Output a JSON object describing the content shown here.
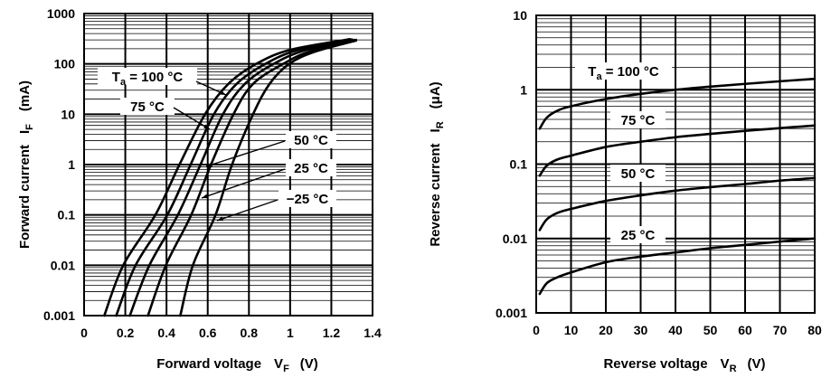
{
  "chart_data": [
    {
      "type": "line",
      "xlabel": {
        "main": "Forward voltage",
        "sym": "V",
        "sub": "F",
        "unit": "(V)"
      },
      "ylabel": {
        "main": "Forward current",
        "sym": "I",
        "sub": "F",
        "unit": "(mA)"
      },
      "xlim": [
        0,
        1.4
      ],
      "ylim": [
        0.001,
        1000
      ],
      "yscale": "log",
      "grid": true,
      "xticks": [
        "0",
        "0.2",
        "0.4",
        "0.6",
        "0.8",
        "1",
        "1.2",
        "1.4"
      ],
      "yticks": [
        "0.001",
        "0.01",
        "0.1",
        "1",
        "10",
        "100",
        "1000"
      ],
      "series": [
        {
          "name": "Ta = 100 °C",
          "label": {
            "sym": "T",
            "sub": "a",
            "rest": " = 100 °C"
          },
          "points": [
            [
              0.098,
              0.001
            ],
            [
              0.19,
              0.01
            ],
            [
              0.346,
              0.1
            ],
            [
              0.463,
              1
            ],
            [
              0.587,
              10
            ],
            [
              0.7,
              40
            ],
            [
              0.835,
              100
            ],
            [
              1.0,
              190
            ],
            [
              1.29,
              310
            ]
          ]
        },
        {
          "name": "75 °C",
          "label": {
            "sym": "",
            "sub": "",
            "rest": "75 °C"
          },
          "points": [
            [
              0.156,
              0.001
            ],
            [
              0.25,
              0.01
            ],
            [
              0.404,
              0.1
            ],
            [
              0.517,
              1
            ],
            [
              0.63,
              10
            ],
            [
              0.74,
              40
            ],
            [
              0.88,
              100
            ],
            [
              1.04,
              190
            ],
            [
              1.3,
              305
            ]
          ]
        },
        {
          "name": "50 °C",
          "label": {
            "sym": "",
            "sub": "",
            "rest": "50 °C"
          },
          "points": [
            [
              0.222,
              0.001
            ],
            [
              0.317,
              0.01
            ],
            [
              0.455,
              0.1
            ],
            [
              0.565,
              1
            ],
            [
              0.674,
              10
            ],
            [
              0.78,
              40
            ],
            [
              0.92,
              100
            ],
            [
              1.07,
              185
            ],
            [
              1.31,
              300
            ]
          ]
        },
        {
          "name": "25 °C",
          "label": {
            "sym": "",
            "sub": "",
            "rest": "25 °C"
          },
          "points": [
            [
              0.31,
              0.001
            ],
            [
              0.397,
              0.01
            ],
            [
              0.52,
              0.1
            ],
            [
              0.616,
              1
            ],
            [
              0.725,
              10
            ],
            [
              0.82,
              40
            ],
            [
              0.966,
              100
            ],
            [
              1.1,
              180
            ],
            [
              1.32,
              300
            ]
          ]
        },
        {
          "name": "−25 °C",
          "label": {
            "sym": "",
            "sub": "",
            "rest": "−25 °C"
          },
          "points": [
            [
              0.467,
              0.001
            ],
            [
              0.528,
              0.01
            ],
            [
              0.638,
              0.1
            ],
            [
              0.718,
              1
            ],
            [
              0.82,
              10
            ],
            [
              0.9,
              40
            ],
            [
              0.995,
              100
            ],
            [
              1.12,
              175
            ],
            [
              1.32,
              290
            ]
          ]
        }
      ]
    },
    {
      "type": "line",
      "xlabel": {
        "main": "Reverse voltage",
        "sym": "V",
        "sub": "R",
        "unit": "(V)"
      },
      "ylabel": {
        "main": "Reverse current",
        "sym": "I",
        "sub": "R",
        "unit": "(μA)"
      },
      "xlim": [
        0,
        80
      ],
      "ylim": [
        0.001,
        10
      ],
      "yscale": "log",
      "grid": true,
      "xticks": [
        "0",
        "10",
        "20",
        "30",
        "40",
        "50",
        "60",
        "70",
        "80"
      ],
      "yticks": [
        "0.001",
        "0.01",
        "0.1",
        "1",
        "10"
      ],
      "series": [
        {
          "name": "Ta = 100 °C",
          "label": {
            "sym": "T",
            "sub": "a",
            "rest": " = 100 °C"
          },
          "points": [
            [
              1,
              0.3
            ],
            [
              3,
              0.42
            ],
            [
              6,
              0.52
            ],
            [
              10,
              0.6
            ],
            [
              20,
              0.75
            ],
            [
              30,
              0.88
            ],
            [
              40,
              1.0
            ],
            [
              50,
              1.1
            ],
            [
              60,
              1.2
            ],
            [
              70,
              1.3
            ],
            [
              80,
              1.4
            ]
          ]
        },
        {
          "name": "75 °C",
          "label": {
            "sym": "",
            "sub": "",
            "rest": "75 °C"
          },
          "points": [
            [
              1,
              0.07
            ],
            [
              3,
              0.095
            ],
            [
              6,
              0.115
            ],
            [
              10,
              0.13
            ],
            [
              20,
              0.17
            ],
            [
              30,
              0.2
            ],
            [
              40,
              0.23
            ],
            [
              50,
              0.255
            ],
            [
              60,
              0.28
            ],
            [
              70,
              0.305
            ],
            [
              80,
              0.33
            ]
          ]
        },
        {
          "name": "50 °C",
          "label": {
            "sym": "",
            "sub": "",
            "rest": "50 °C"
          },
          "points": [
            [
              1,
              0.013
            ],
            [
              3,
              0.018
            ],
            [
              6,
              0.022
            ],
            [
              10,
              0.025
            ],
            [
              20,
              0.032
            ],
            [
              30,
              0.038
            ],
            [
              40,
              0.044
            ],
            [
              50,
              0.049
            ],
            [
              60,
              0.054
            ],
            [
              70,
              0.06
            ],
            [
              80,
              0.065
            ]
          ]
        },
        {
          "name": "25 °C",
          "label": {
            "sym": "",
            "sub": "",
            "rest": "25 °C"
          },
          "points": [
            [
              1,
              0.0018
            ],
            [
              3,
              0.0025
            ],
            [
              6,
              0.003
            ],
            [
              10,
              0.0035
            ],
            [
              20,
              0.0048
            ],
            [
              30,
              0.0057
            ],
            [
              40,
              0.0065
            ],
            [
              50,
              0.0074
            ],
            [
              60,
              0.0082
            ],
            [
              70,
              0.0091
            ],
            [
              80,
              0.01
            ]
          ]
        }
      ]
    }
  ]
}
